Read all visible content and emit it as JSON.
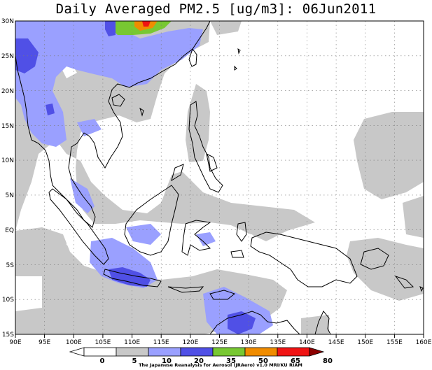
{
  "title": "Daily Averaged PM2.5 [ug/m3]: 06Jun2011",
  "credit": "The Japanese Reanalysis for Aerosol (JRAero) v1.0 MRI/KU RIAM",
  "map": {
    "lon_range": [
      90,
      160
    ],
    "lat_range": [
      -15,
      30
    ],
    "lon_ticks": [
      "90E",
      "95E",
      "100E",
      "105E",
      "110E",
      "115E",
      "120E",
      "125E",
      "130E",
      "135E",
      "140E",
      "145E",
      "150E",
      "155E",
      "160E"
    ],
    "lat_ticks": [
      "30N",
      "25N",
      "20N",
      "15N",
      "10N",
      "5N",
      "EQ",
      "5S",
      "10S",
      "15S"
    ],
    "gridlines": "dotted",
    "coastlines": true
  },
  "colorbar": {
    "labels": [
      "0",
      "5",
      "10",
      "20",
      "35",
      "50",
      "65",
      "80"
    ],
    "colors": [
      "#ffffff",
      "#c8c8c8",
      "#9aa0ff",
      "#5050e6",
      "#78c832",
      "#f08c00",
      "#f01414",
      "#8c0000"
    ]
  }
}
